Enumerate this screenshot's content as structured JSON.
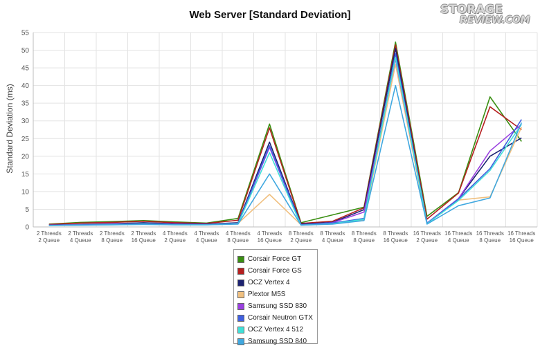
{
  "chart_data": {
    "type": "line",
    "title": "Web Server [Standard Deviation]",
    "ylabel": "Standard Deviation (ms)",
    "xlabel": "",
    "ylim": [
      0,
      55
    ],
    "yticks": [
      0,
      5,
      10,
      15,
      20,
      25,
      30,
      35,
      40,
      45,
      50,
      55
    ],
    "grid": true,
    "legend_position": "bottom-center",
    "categories": [
      [
        "2 Threads",
        "2 Queue"
      ],
      [
        "2 Threads",
        "4 Queue"
      ],
      [
        "2 Threads",
        "8 Queue"
      ],
      [
        "2 Threads",
        "16 Queue"
      ],
      [
        "4 Threads",
        "2 Queue"
      ],
      [
        "4 Threads",
        "4 Queue"
      ],
      [
        "4 Threads",
        "8 Queue"
      ],
      [
        "4 Threads",
        "16 Queue"
      ],
      [
        "8 Threads",
        "2 Queue"
      ],
      [
        "8 Threads",
        "4 Queue"
      ],
      [
        "8 Threads",
        "8 Queue"
      ],
      [
        "8 Threads",
        "16 Queue"
      ],
      [
        "16 Threads",
        "2 Queue"
      ],
      [
        "16 Threads",
        "4 Queue"
      ],
      [
        "16 Threads",
        "8 Queue"
      ],
      [
        "16 Threads",
        "16 Queue"
      ]
    ],
    "series": [
      {
        "name": "Corsair Force GT",
        "color": "#3a8f12",
        "values": [
          0.8,
          1.3,
          1.5,
          1.8,
          1.4,
          1.1,
          2.4,
          29.1,
          1.2,
          3.4,
          5.6,
          52.3,
          3.0,
          9.7,
          36.8,
          24.2
        ]
      },
      {
        "name": "Corsair Force GS",
        "color": "#b52020",
        "values": [
          0.7,
          1.1,
          1.3,
          1.6,
          1.2,
          1.0,
          1.9,
          28.0,
          1.0,
          1.6,
          5.4,
          51.5,
          2.2,
          9.6,
          34.0,
          27.5
        ]
      },
      {
        "name": "OCZ Vertex 4",
        "color": "#1c2270",
        "values": [
          0.5,
          0.7,
          0.9,
          1.2,
          0.9,
          0.8,
          1.2,
          24.0,
          0.8,
          1.3,
          4.9,
          50.5,
          1.0,
          8.0,
          20.0,
          25.2
        ]
      },
      {
        "name": "Plextor M5S",
        "color": "#f0c080",
        "values": [
          0.5,
          0.6,
          0.7,
          0.8,
          0.7,
          0.7,
          1.0,
          9.2,
          0.6,
          0.9,
          2.0,
          46.0,
          0.9,
          7.6,
          8.5,
          28.2
        ]
      },
      {
        "name": "Samsung SSD 830",
        "color": "#9a40e0",
        "values": [
          0.5,
          0.6,
          0.8,
          0.9,
          0.8,
          0.7,
          1.0,
          22.5,
          0.6,
          1.2,
          4.2,
          47.5,
          1.1,
          8.0,
          21.5,
          29.0
        ]
      },
      {
        "name": "Corsair Neutron GTX",
        "color": "#4060e0",
        "values": [
          0.5,
          0.6,
          0.7,
          0.9,
          0.7,
          0.7,
          1.0,
          23.0,
          0.6,
          1.1,
          2.4,
          49.0,
          1.0,
          7.9,
          16.5,
          30.4
        ]
      },
      {
        "name": "OCZ Vertex 4 512",
        "color": "#40e0d8",
        "values": [
          0.4,
          0.5,
          0.6,
          0.8,
          0.6,
          0.6,
          0.9,
          21.0,
          0.5,
          0.9,
          2.2,
          48.0,
          0.9,
          7.5,
          16.0,
          29.0
        ]
      },
      {
        "name": "Samsung SSD 840",
        "color": "#40a8e0",
        "values": [
          0.4,
          0.5,
          0.6,
          0.7,
          0.6,
          0.6,
          0.8,
          15.0,
          0.5,
          0.8,
          1.8,
          40.0,
          0.8,
          6.0,
          8.2,
          29.5
        ]
      }
    ]
  },
  "watermark": {
    "line1": "STORAGE",
    "line2": "REVIEW.COM"
  }
}
